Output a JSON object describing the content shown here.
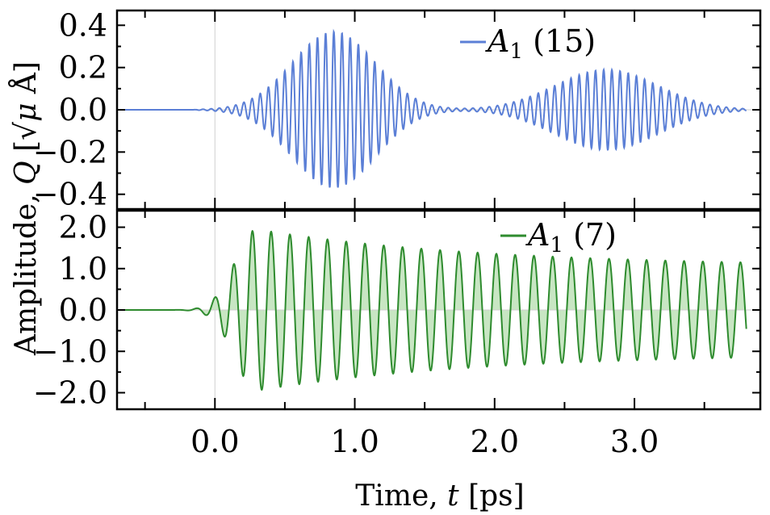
{
  "figure": {
    "x_axis_label": "Time,  t  [ps]",
    "y_axis_label": "Amplitude,  Q  [√μ Å]",
    "y_axis_label_parts": {
      "prefix": "Amplitude,  ",
      "symbol": "Q",
      "unit_open": "  [",
      "sqrt": "√",
      "mu": "μ",
      "angstrom": " Å",
      "unit_close": "]"
    },
    "x_axis_label_parts": {
      "prefix": "Time,  ",
      "symbol": "t",
      "unit": "  [ps]"
    }
  },
  "chart_data": [
    {
      "type": "line",
      "panel": "top",
      "series": [
        {
          "name": "A1 (15)",
          "legend_main": "A",
          "legend_sub": "1",
          "legend_rest": " (15)",
          "color": "#5b7fd6"
        }
      ],
      "signal": {
        "frequency_thz": 17.1,
        "envelopes": [
          {
            "center": 0.85,
            "width": 0.42,
            "amplitude": 0.37
          },
          {
            "center": 2.8,
            "width": 0.52,
            "amplitude": 0.19
          }
        ],
        "onset": -0.1,
        "t_end": 3.8
      },
      "xlim": [
        -0.7,
        3.9
      ],
      "ylim": [
        -0.47,
        0.47
      ],
      "yticks": [
        -0.4,
        -0.2,
        0.0,
        0.2,
        0.4
      ],
      "ytick_labels": [
        "−0.4",
        "−0.2",
        "0.0",
        "0.2",
        "0.4"
      ],
      "xticks": [
        0.0,
        1.0,
        2.0,
        3.0
      ],
      "filled": false,
      "legend_position": "top-right"
    },
    {
      "type": "area",
      "panel": "bottom",
      "series": [
        {
          "name": "A1 (7)",
          "legend_main": "A",
          "legend_sub": "1",
          "legend_rest": " (7)",
          "color": "#2e8b2e",
          "fill": "#c8e6c3"
        }
      ],
      "signal": {
        "frequency_thz": 7.45,
        "peak_amplitude": 1.95,
        "peak_time": 0.3,
        "final_amplitude": 1.05,
        "decay_time": 1.6,
        "onset": -0.2,
        "t_end": 3.8
      },
      "xlim": [
        -0.7,
        3.9
      ],
      "ylim": [
        -2.4,
        2.4
      ],
      "yticks": [
        -2.0,
        -1.0,
        0.0,
        1.0,
        2.0
      ],
      "ytick_labels": [
        "−2.0",
        "−1.0",
        "0.0",
        "1.0",
        "2.0"
      ],
      "xticks": [
        0.0,
        1.0,
        2.0,
        3.0
      ],
      "xtick_labels": [
        "0.0",
        "1.0",
        "2.0",
        "3.0"
      ],
      "filled": true,
      "legend_position": "top-right"
    }
  ]
}
